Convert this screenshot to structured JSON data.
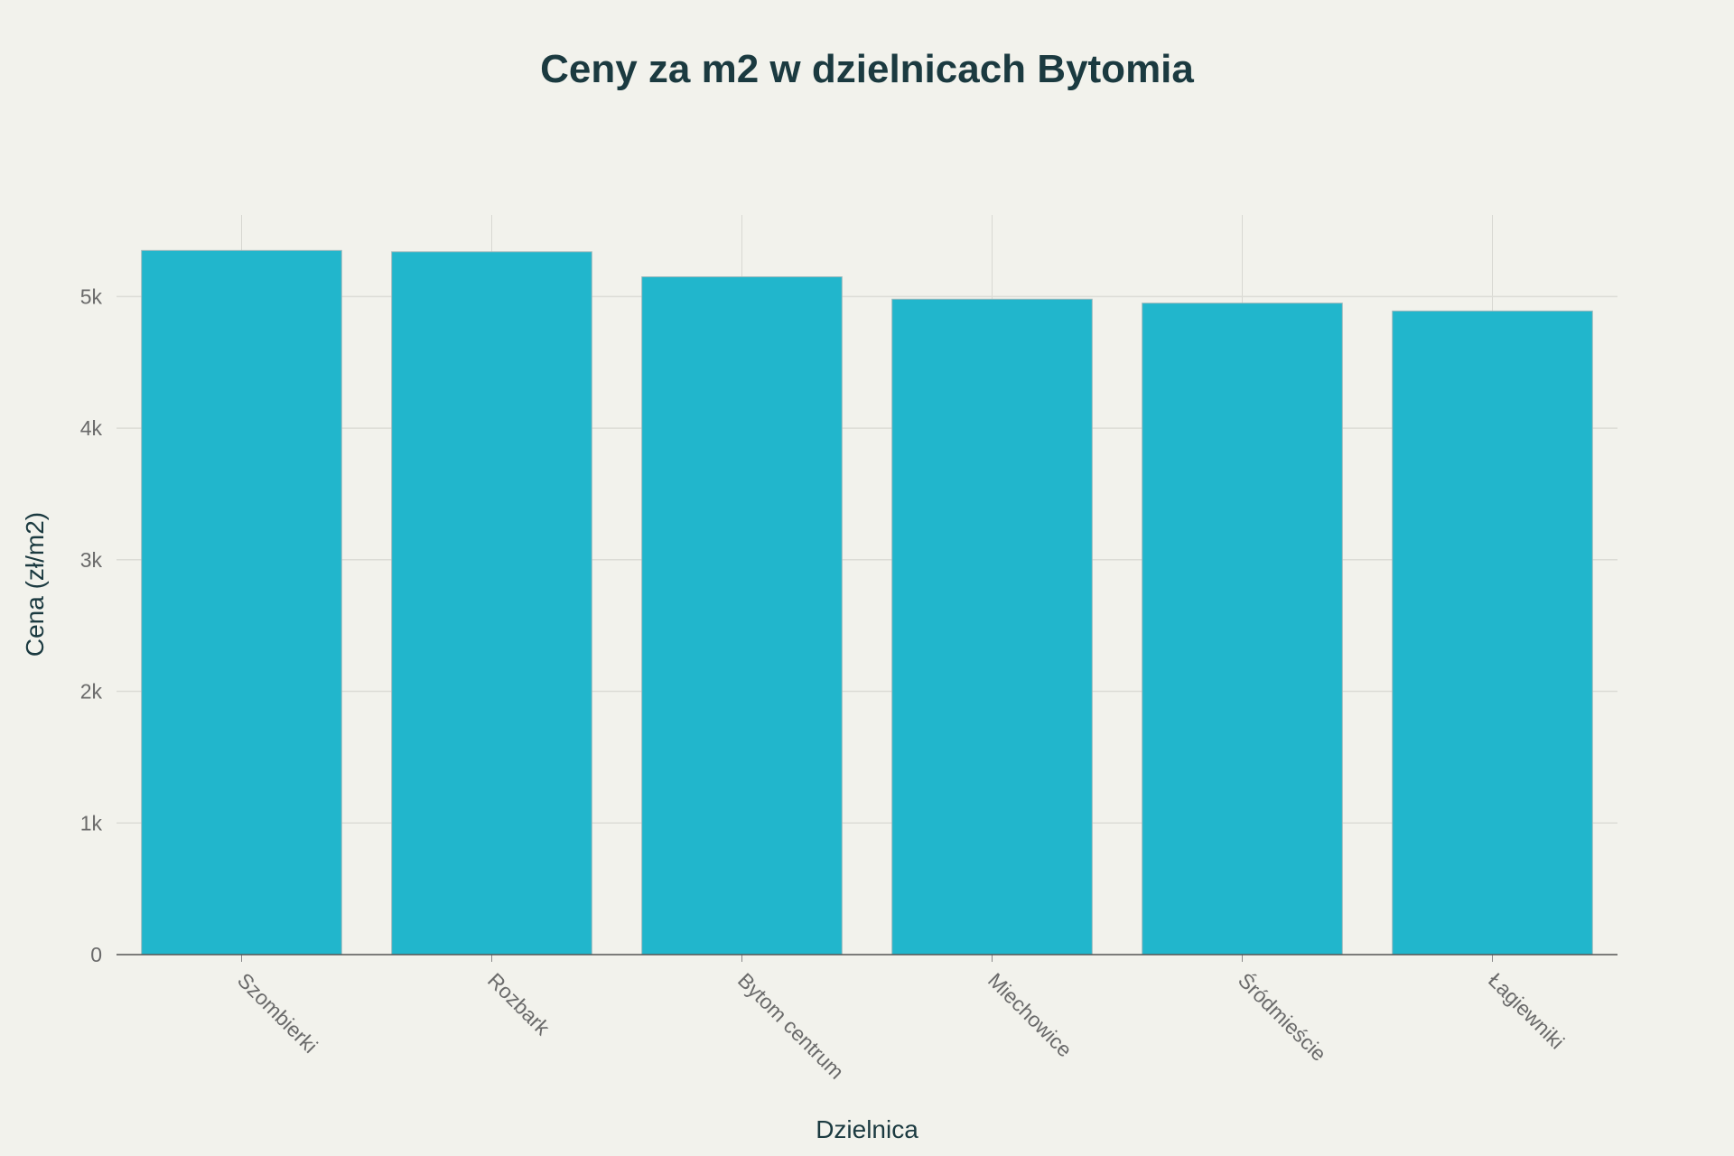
{
  "chart_data": {
    "type": "bar",
    "title": "Ceny za m2 w dzielnicach Bytomia",
    "xlabel": "Dzielnica",
    "ylabel": "Cena (zł/m2)",
    "categories": [
      "Szombierki",
      "Rozbark",
      "Bytom centrum",
      "Miechowice",
      "Śródmieście",
      "Łagiewniki"
    ],
    "values": [
      5350,
      5340,
      5150,
      4980,
      4950,
      4890
    ],
    "ylim": [
      0,
      5620
    ],
    "yticks": [
      0,
      1000,
      2000,
      3000,
      4000,
      5000
    ],
    "ytick_labels": [
      "0",
      "1k",
      "2k",
      "3k",
      "4k",
      "5k"
    ],
    "grid": true,
    "bar_color": "#21b6cc"
  }
}
